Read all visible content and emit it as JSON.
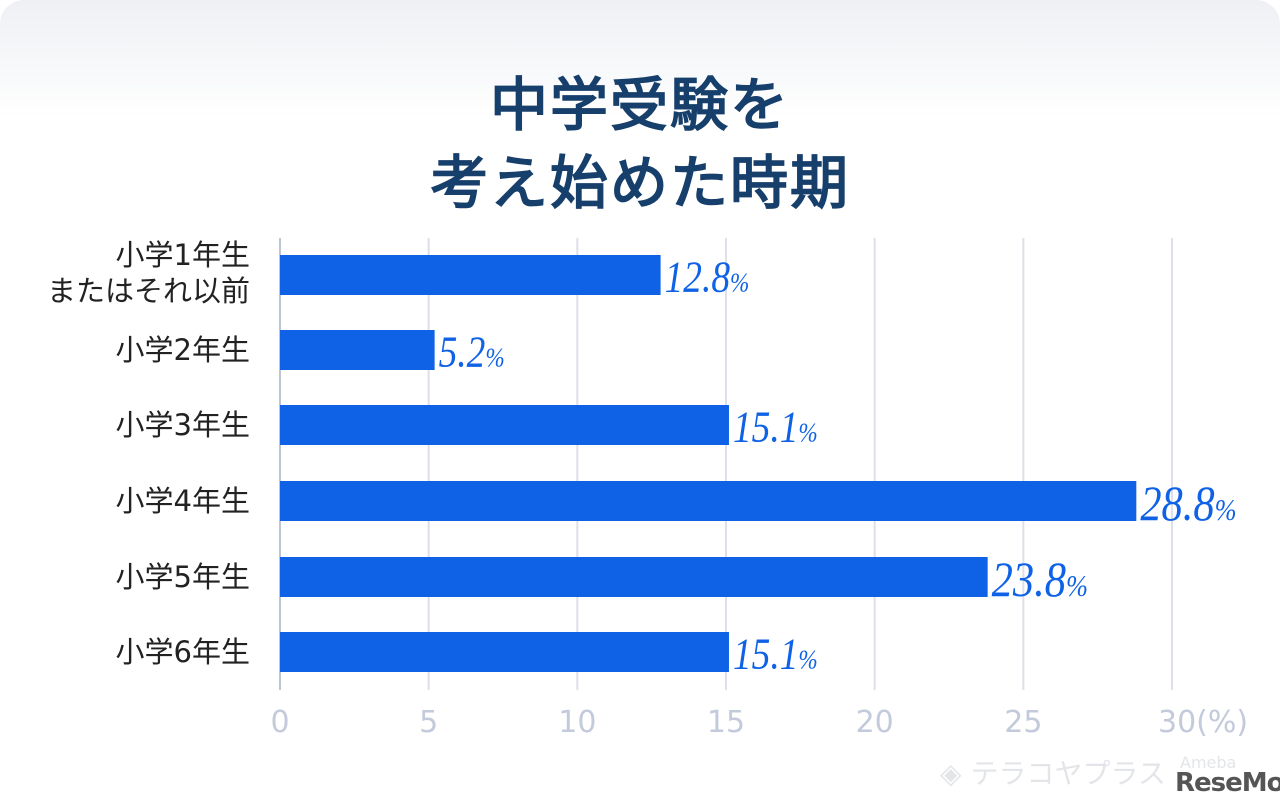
{
  "title_lines": [
    "中学受験を",
    "考え始めた時期"
  ],
  "chart_data": {
    "type": "bar",
    "orientation": "horizontal",
    "title": "中学受験を考え始めた時期",
    "categories": [
      "小学1年生\nまたはそれ以前",
      "小学2年生",
      "小学3年生",
      "小学4年生",
      "小学5年生",
      "小学6年生"
    ],
    "category_lines": [
      [
        "小学1年生",
        "またはそれ以前"
      ],
      [
        "小学2年生"
      ],
      [
        "小学3年生"
      ],
      [
        "小学4年生"
      ],
      [
        "小学5年生"
      ],
      [
        "小学6年生"
      ]
    ],
    "values": [
      12.8,
      5.2,
      15.1,
      28.8,
      23.8,
      15.1
    ],
    "data_labels": [
      "12.8",
      "5.2",
      "15.1",
      "28.8",
      "23.8",
      "15.1"
    ],
    "label_unit": "%",
    "xlim": [
      0,
      30
    ],
    "xticks": [
      "0",
      "5",
      "10",
      "15",
      "20",
      "25",
      "30(%)"
    ],
    "grid": true,
    "bar_color": "#0f62e6",
    "label_color": "#0f62e6",
    "tick_color": "#c3cadb"
  },
  "logos": {
    "brand": "テラコヤプラス",
    "sub": "Ameba",
    "site": "ReseMom"
  }
}
